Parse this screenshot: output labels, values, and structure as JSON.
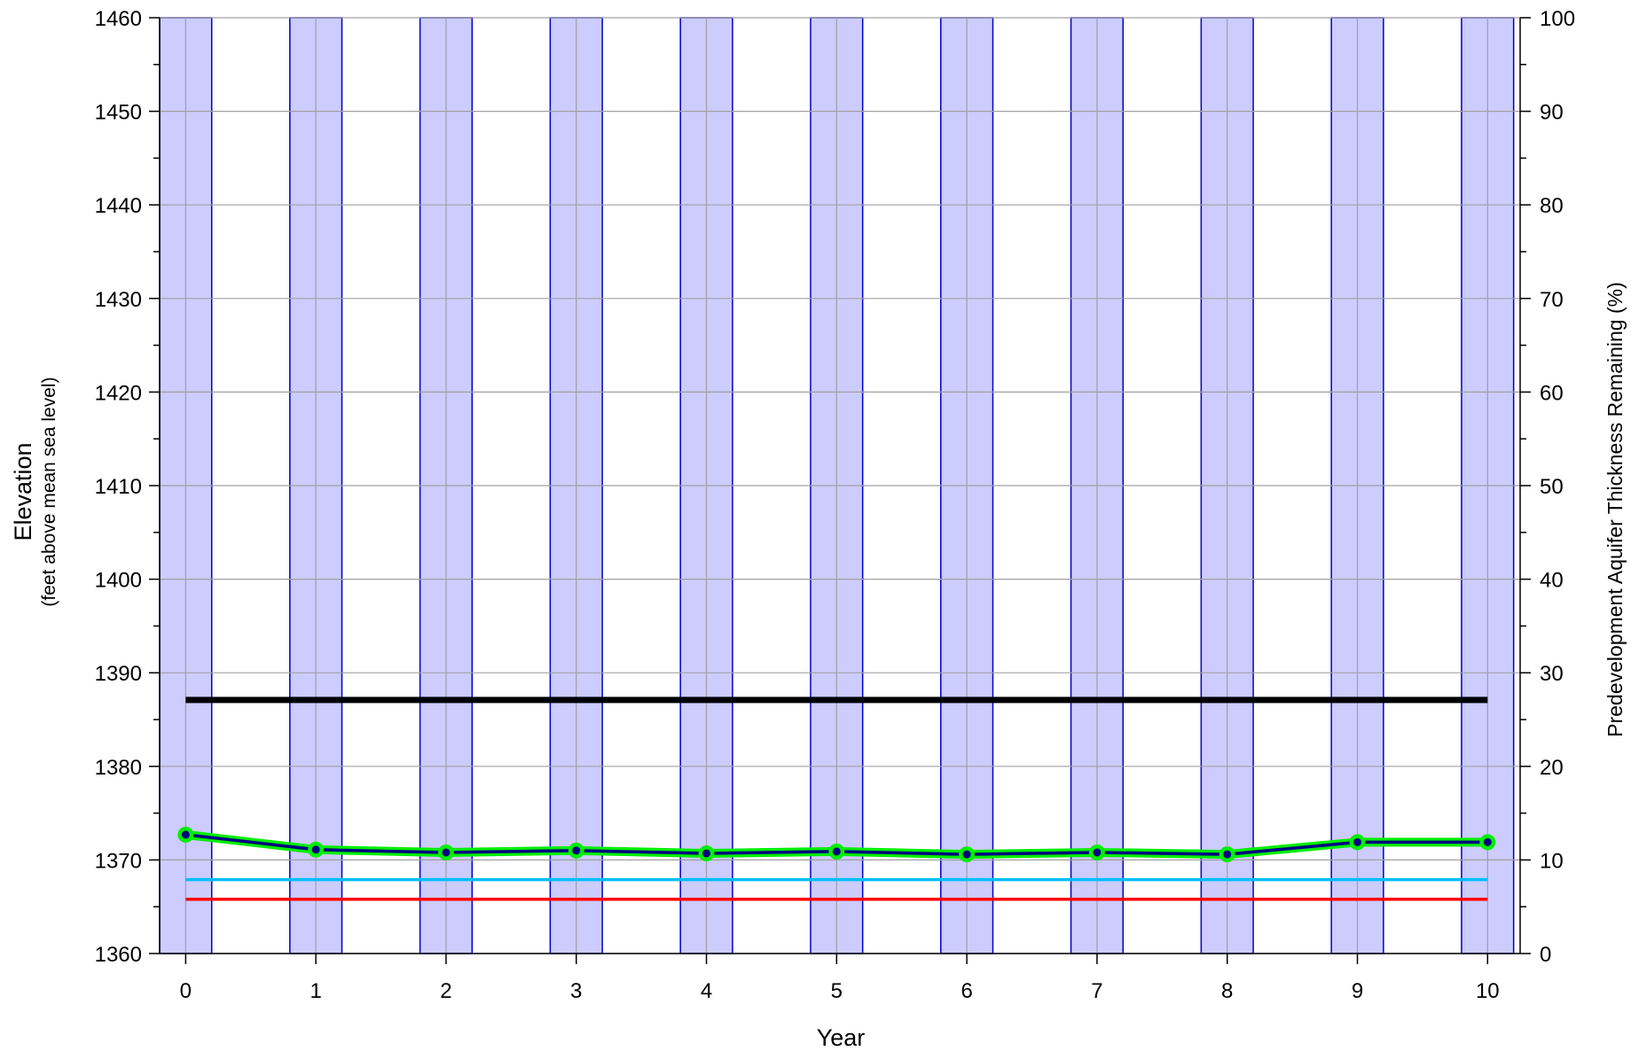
{
  "chart_data": {
    "type": "line",
    "xlabel": "Year",
    "ylabel": "Elevation",
    "ylabel_sub": "(feet above mean sea level)",
    "y2label": "Predevelopment Aquifer Thickness Remaining (%)",
    "xlim": [
      -0.2,
      10.25
    ],
    "ylim": [
      1360,
      1460
    ],
    "y2lim": [
      0,
      100
    ],
    "x_ticks": [
      0,
      1,
      2,
      3,
      4,
      5,
      6,
      7,
      8,
      9,
      10
    ],
    "y_ticks": [
      1360,
      1370,
      1380,
      1390,
      1400,
      1410,
      1420,
      1430,
      1440,
      1450,
      1460
    ],
    "y2_ticks": [
      0,
      10,
      20,
      30,
      40,
      50,
      60,
      70,
      80,
      90,
      100
    ],
    "grid": true,
    "bars": {
      "name": "Predevelopment Aquifer Thickness Remaining",
      "axis": "right",
      "x": [
        0,
        1,
        2,
        3,
        4,
        5,
        6,
        7,
        8,
        9,
        10
      ],
      "values": [
        100,
        100,
        100,
        100,
        100,
        100,
        100,
        100,
        100,
        100,
        100
      ],
      "width_years": 0.4,
      "fill": "#ccccff",
      "stroke": "#0000cc"
    },
    "series": [
      {
        "axis": "left",
        "x": [
          0,
          1,
          2,
          3,
          4,
          5,
          6,
          7,
          8,
          9,
          10
        ],
        "values": [
          1372.7,
          1371.1,
          1370.8,
          1371.0,
          1370.7,
          1370.9,
          1370.6,
          1370.8,
          1370.6,
          1371.9,
          1371.9
        ],
        "color": "#000080",
        "marker_color": "#00ee00"
      }
    ],
    "hlines": [
      {
        "y": 1387.1,
        "color": "#000000",
        "x_from": 0,
        "x_to": 10
      },
      {
        "y": 1367.9,
        "color": "#00bfff",
        "x_from": 0,
        "x_to": 10
      },
      {
        "y": 1365.8,
        "color": "#ff0000",
        "x_from": 0,
        "x_to": 10
      }
    ]
  }
}
